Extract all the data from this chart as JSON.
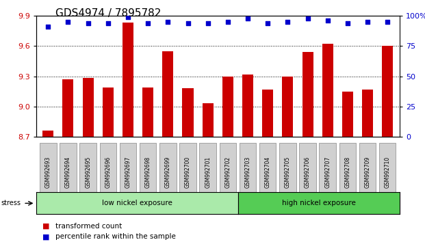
{
  "title": "GDS4974 / 7895782",
  "samples": [
    "GSM992693",
    "GSM992694",
    "GSM992695",
    "GSM992696",
    "GSM992697",
    "GSM992698",
    "GSM992699",
    "GSM992700",
    "GSM992701",
    "GSM992702",
    "GSM992703",
    "GSM992704",
    "GSM992705",
    "GSM992706",
    "GSM992707",
    "GSM992708",
    "GSM992709",
    "GSM992710"
  ],
  "bar_values": [
    8.76,
    9.27,
    9.28,
    9.19,
    9.83,
    9.19,
    9.55,
    9.18,
    9.03,
    9.3,
    9.32,
    9.17,
    9.3,
    9.54,
    9.62,
    9.15,
    9.17,
    9.6
  ],
  "percentile_values": [
    91,
    95,
    94,
    94,
    99,
    94,
    95,
    94,
    94,
    95,
    98,
    94,
    95,
    98,
    96,
    94,
    95,
    95
  ],
  "bar_color": "#cc0000",
  "dot_color": "#0000cc",
  "ylim_left": [
    8.7,
    9.9
  ],
  "ylim_right": [
    0,
    100
  ],
  "yticks_left": [
    8.7,
    9.0,
    9.3,
    9.6,
    9.9
  ],
  "yticks_right": [
    0,
    25,
    50,
    75,
    100
  ],
  "ytick_labels_right": [
    "0",
    "25",
    "50",
    "75",
    "100%"
  ],
  "grid_vals": [
    9.0,
    9.3,
    9.6
  ],
  "low_nickel_label": "low nickel exposure",
  "high_nickel_label": "high nickel exposure",
  "low_nickel_count": 10,
  "high_nickel_count": 8,
  "stress_label": "stress",
  "legend_bar_label": "transformed count",
  "legend_dot_label": "percentile rank within the sample",
  "title_fontsize": 11,
  "axis_label_color_left": "#cc0000",
  "axis_label_color_right": "#0000cc",
  "background_color": "#ffffff",
  "plot_bg_color": "#ffffff",
  "low_nickel_color": "#aaeaaa",
  "high_nickel_color": "#55cc55"
}
